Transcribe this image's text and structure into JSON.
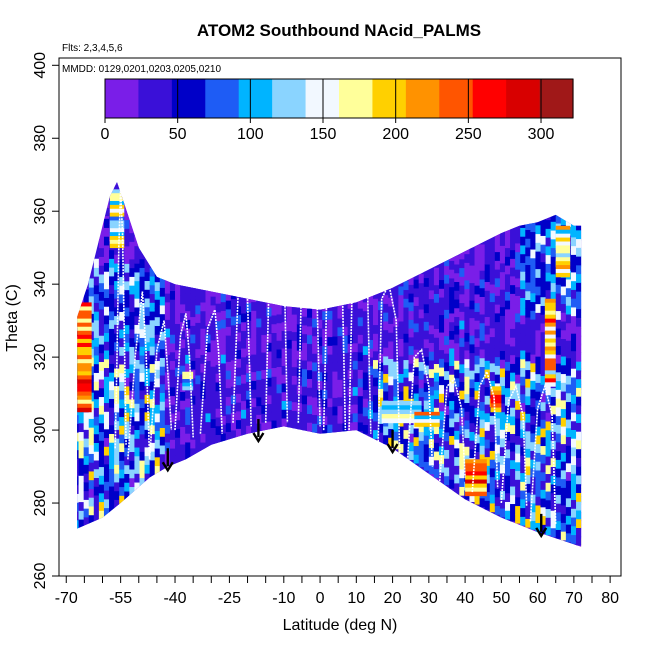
{
  "chart_data": {
    "type": "heatmap",
    "title": "ATOM2 Southbound NAcid_PALMS",
    "flights_note": "Flts: 2,3,4,5,6",
    "dates_note": "MMDD: 0129,0201,0203,0205,0210",
    "xlabel": "Latitude (deg N)",
    "ylabel": "Theta (C)",
    "xlim": [
      -72,
      83
    ],
    "ylim": [
      260,
      402
    ],
    "x_ticks": [
      -70,
      -55,
      -40,
      -25,
      -10,
      0,
      10,
      20,
      30,
      40,
      50,
      60,
      70,
      80
    ],
    "x_tick_labels": [
      "-70",
      "-55",
      "-40",
      "-25",
      "-10",
      "0",
      "10",
      "20",
      "30",
      "40",
      "50",
      "60",
      "70",
      "80"
    ],
    "x_minor_ticks": [
      -65,
      -60,
      -50,
      -45,
      -35,
      -30,
      -20,
      -15,
      -5,
      5,
      15,
      25,
      35,
      45,
      55,
      65,
      75
    ],
    "y_ticks": [
      260,
      280,
      300,
      320,
      340,
      360,
      380,
      400
    ],
    "y_tick_labels": [
      "260",
      "280",
      "300",
      "320",
      "340",
      "360",
      "380",
      "400"
    ],
    "colorbar": {
      "range": [
        0,
        322
      ],
      "ticks": [
        0,
        50,
        100,
        150,
        200,
        250,
        300
      ],
      "tick_labels": [
        "0",
        "50",
        "100",
        "150",
        "200",
        "250",
        "300"
      ],
      "colors": [
        "#7a1ee8",
        "#3a10d8",
        "#0000c8",
        "#1e5cf5",
        "#00b4ff",
        "#8ad4ff",
        "#f2f8ff",
        "#ffff9a",
        "#ffd000",
        "#ff9200",
        "#ff5500",
        "#ff0000",
        "#d80000",
        "#a01818"
      ]
    },
    "surface_boundary": {
      "lat": [
        -67,
        -60,
        -55,
        -47,
        -42,
        -37,
        -30,
        -20,
        -10,
        0,
        10,
        20,
        30,
        40,
        50,
        60,
        72
      ],
      "theta": [
        273,
        276,
        280,
        287,
        290,
        292,
        296,
        299,
        301,
        299,
        300,
        295,
        288,
        281,
        276,
        272,
        268
      ]
    },
    "top_boundary": {
      "lat": [
        -67,
        -64,
        -58,
        -56,
        -54,
        -50,
        -45,
        -40,
        -30,
        -20,
        -10,
        0,
        10,
        20,
        30,
        40,
        50,
        55,
        60,
        65,
        70
      ],
      "theta": [
        331,
        340,
        364,
        368,
        362,
        350,
        342,
        340,
        338,
        336,
        334,
        333,
        335,
        339,
        344,
        349,
        354,
        356,
        357,
        359,
        356
      ]
    },
    "enhanced_regions": [
      {
        "lat": [
          -67,
          -63
        ],
        "theta": [
          305,
          335
        ],
        "value": 250
      },
      {
        "lat": [
          -58,
          -54
        ],
        "theta": [
          350,
          366
        ],
        "value": 170
      },
      {
        "lat": [
          -38,
          -35
        ],
        "theta": [
          311,
          316
        ],
        "value": 160
      },
      {
        "lat": [
          17,
          28
        ],
        "theta": [
          302,
          308
        ],
        "value": 180
      },
      {
        "lat": [
          26,
          33
        ],
        "theta": [
          301,
          305
        ],
        "value": 200
      },
      {
        "lat": [
          40,
          46
        ],
        "theta": [
          282,
          292
        ],
        "value": 240
      },
      {
        "lat": [
          47,
          50
        ],
        "theta": [
          305,
          312
        ],
        "value": 260
      },
      {
        "lat": [
          62,
          65
        ],
        "theta": [
          312,
          336
        ],
        "value": 220
      },
      {
        "lat": [
          65,
          69
        ],
        "theta": [
          342,
          356
        ],
        "value": 180
      }
    ],
    "tropopause_traces": [
      {
        "lat": [
          -56.5,
          -56,
          -55.5,
          -55,
          -54.5,
          -54,
          -53.5
        ],
        "theta": [
          295,
          320,
          350,
          366,
          354,
          326,
          296
        ]
      },
      {
        "lat": [
          -53,
          -51,
          -49,
          -48,
          -47
        ],
        "theta": [
          292,
          320,
          338,
          322,
          292
        ]
      },
      {
        "lat": [
          -47,
          -45,
          -43,
          -42,
          -41
        ],
        "theta": [
          292,
          322,
          330,
          316,
          300
        ]
      },
      {
        "lat": [
          -40,
          -38.5,
          -37,
          -36,
          -35
        ],
        "theta": [
          300,
          326,
          332,
          320,
          298
        ]
      },
      {
        "lat": [
          -33,
          -31,
          -29,
          -28,
          -27
        ],
        "theta": [
          299,
          328,
          333,
          322,
          299
        ]
      },
      {
        "lat": [
          -24,
          -22.5,
          -21,
          -20,
          -19
        ],
        "theta": [
          302,
          340,
          346,
          336,
          301
        ]
      },
      {
        "lat": [
          -15,
          -14,
          -12,
          -10,
          -9
        ],
        "theta": [
          302,
          344,
          351,
          350,
          302
        ]
      },
      {
        "lat": [
          -6,
          -5,
          -3,
          -1,
          0
        ],
        "theta": [
          302,
          345,
          348,
          344,
          301
        ]
      },
      {
        "lat": [
          1,
          2,
          4,
          6,
          7
        ],
        "theta": [
          300,
          344,
          349,
          346,
          300
        ]
      },
      {
        "lat": [
          8,
          9,
          11,
          13,
          14
        ],
        "theta": [
          300,
          346,
          348,
          343,
          299
        ]
      },
      {
        "lat": [
          16,
          17,
          19,
          21,
          22
        ],
        "theta": [
          296,
          336,
          340,
          330,
          293
        ]
      },
      {
        "lat": [
          24,
          26,
          28,
          30,
          31
        ],
        "theta": [
          290,
          320,
          322,
          312,
          290
        ]
      },
      {
        "lat": [
          33,
          35,
          37,
          39,
          40
        ],
        "theta": [
          286,
          312,
          314,
          306,
          287
        ]
      },
      {
        "lat": [
          42,
          44,
          46,
          48,
          49
        ],
        "theta": [
          283,
          312,
          316,
          309,
          284
        ]
      },
      {
        "lat": [
          50,
          52,
          54,
          56,
          57
        ],
        "theta": [
          280,
          308,
          312,
          304,
          279
        ]
      },
      {
        "lat": [
          58,
          60,
          62,
          64,
          65
        ],
        "theta": [
          275,
          306,
          312,
          304,
          274
        ]
      }
    ],
    "flight_markers": {
      "lat": [
        -42,
        -17,
        20,
        61
      ],
      "theta": [
        289,
        297,
        294,
        271
      ]
    }
  }
}
